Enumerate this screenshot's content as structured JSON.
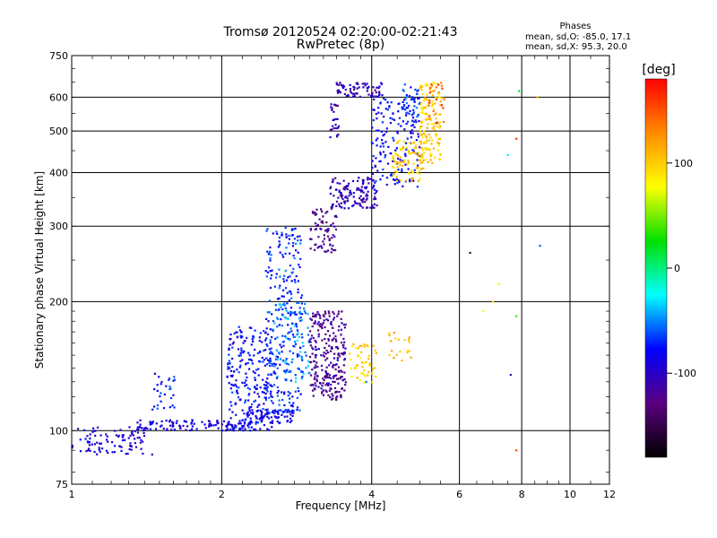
{
  "chart_data": {
    "type": "scatter",
    "title": "Tromsø 20120524 02:20:00-02:21:43",
    "subtitle": "RwPretec (8p)",
    "xlabel": "Frequency [MHz]",
    "ylabel": "Stationary phase Virtual Height [km]",
    "x_scale": "log",
    "y_scale": "log",
    "xlim": [
      1,
      12
    ],
    "ylim": [
      75,
      750
    ],
    "x_ticks": [
      1,
      2,
      4,
      6,
      8,
      10,
      12
    ],
    "x_tick_labels": [
      "1",
      "2",
      "4",
      "6",
      "8",
      "10",
      "12"
    ],
    "y_ticks": [
      75,
      100,
      200,
      300,
      400,
      500,
      600,
      750
    ],
    "y_tick_labels": [
      "75",
      "100",
      "200",
      "300",
      "400",
      "500",
      "600",
      "750"
    ],
    "grid": true,
    "phases_box": {
      "title": "Phases",
      "line1": "mean, sd,O: -85.0, 17.1",
      "line2": "mean, sd,X:  95.3, 20.0"
    },
    "colorbar": {
      "label": "[deg]",
      "range": [
        -180,
        180
      ],
      "ticks": [
        100,
        0,
        -100
      ],
      "tick_labels": [
        "100",
        "0",
        "-100"
      ],
      "colors": [
        "#ff0000",
        "#ff8c00",
        "#ffff00",
        "#00e000",
        "#00ffff",
        "#0000ff",
        "#5a0080",
        "#000000"
      ]
    },
    "traces": [
      {
        "x_range": [
          1.0,
          1.4
        ],
        "y_range": [
          88,
          102
        ],
        "phase": -95,
        "density": 90
      },
      {
        "x_range": [
          1.35,
          2.3
        ],
        "y_range": [
          100,
          106
        ],
        "phase": -90,
        "density": 120
      },
      {
        "x_range": [
          1.45,
          1.62
        ],
        "y_range": [
          112,
          138
        ],
        "phase": -75,
        "density": 30
      },
      {
        "x_range": [
          2.05,
          2.55
        ],
        "y_range": [
          100,
          175
        ],
        "phase": -80,
        "density": 240
      },
      {
        "x_range": [
          2.45,
          2.9
        ],
        "y_range": [
          110,
          300
        ],
        "phase": -70,
        "density": 260
      },
      {
        "x_range": [
          2.55,
          3.0
        ],
        "y_range": [
          130,
          200
        ],
        "phase": -50,
        "density": 90
      },
      {
        "x_range": [
          2.2,
          2.8
        ],
        "y_range": [
          104,
          112
        ],
        "phase": -85,
        "density": 80
      },
      {
        "x_range": [
          3.0,
          3.55
        ],
        "y_range": [
          118,
          190
        ],
        "phase": -120,
        "density": 260
      },
      {
        "x_range": [
          3.0,
          3.4
        ],
        "y_range": [
          260,
          330
        ],
        "phase": -125,
        "density": 70
      },
      {
        "x_range": [
          3.3,
          4.1
        ],
        "y_range": [
          330,
          390
        ],
        "phase": -105,
        "density": 130
      },
      {
        "x_range": [
          4.0,
          5.0
        ],
        "y_range": [
          370,
          600
        ],
        "phase": -80,
        "density": 160
      },
      {
        "x_range": [
          3.4,
          4.2
        ],
        "y_range": [
          600,
          650
        ],
        "phase": -105,
        "density": 70
      },
      {
        "x_range": [
          3.3,
          3.45
        ],
        "y_range": [
          480,
          580
        ],
        "phase": -110,
        "density": 25
      },
      {
        "x_range": [
          4.6,
          5.0
        ],
        "y_range": [
          540,
          650
        ],
        "phase": -70,
        "density": 40
      },
      {
        "x_range": [
          4.4,
          5.1
        ],
        "y_range": [
          380,
          480
        ],
        "phase": 100,
        "density": 90
      },
      {
        "x_range": [
          5.0,
          5.5
        ],
        "y_range": [
          420,
          650
        ],
        "phase": 100,
        "density": 140
      },
      {
        "x_range": [
          3.6,
          4.1
        ],
        "y_range": [
          128,
          160
        ],
        "phase": 95,
        "density": 50
      },
      {
        "x_range": [
          4.3,
          4.8
        ],
        "y_range": [
          145,
          170
        ],
        "phase": 105,
        "density": 20
      },
      {
        "x_range": [
          5.2,
          5.6
        ],
        "y_range": [
          520,
          650
        ],
        "phase": 150,
        "density": 25
      }
    ],
    "scattered_points": [
      {
        "x": 6.7,
        "y": 190,
        "phase": 80
      },
      {
        "x": 7.2,
        "y": 220,
        "phase": 70
      },
      {
        "x": 7.8,
        "y": 185,
        "phase": 40
      },
      {
        "x": 7.9,
        "y": 620,
        "phase": 20
      },
      {
        "x": 8.6,
        "y": 600,
        "phase": 110
      },
      {
        "x": 7.5,
        "y": 440,
        "phase": -30
      },
      {
        "x": 6.3,
        "y": 260,
        "phase": -150
      },
      {
        "x": 8.7,
        "y": 270,
        "phase": -60
      },
      {
        "x": 7.8,
        "y": 90,
        "phase": 150
      },
      {
        "x": 7.8,
        "y": 480,
        "phase": 160
      },
      {
        "x": 3.9,
        "y": 130,
        "phase": -50
      },
      {
        "x": 7.6,
        "y": 135,
        "phase": -110
      },
      {
        "x": 7.0,
        "y": 200,
        "phase": 90
      },
      {
        "x": 1.45,
        "y": 88,
        "phase": -100
      }
    ]
  }
}
